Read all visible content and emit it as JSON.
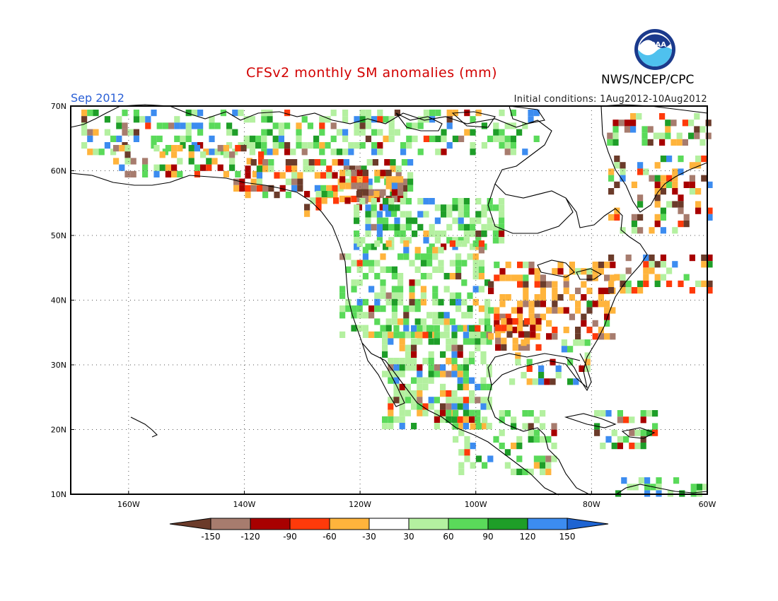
{
  "header": {
    "title": "CFSv2 monthly SM anomalies (mm)",
    "period": "Sep 2012",
    "initial_conditions": "Initial conditions: 1Aug2012-10Aug2012",
    "agency": "NWS/NCEP/CPC",
    "logo_text": "NOAA"
  },
  "map": {
    "lat_labels": [
      "70N",
      "60N",
      "50N",
      "40N",
      "30N",
      "20N",
      "10N"
    ],
    "lon_labels": [
      "160W",
      "140W",
      "120W",
      "100W",
      "80W",
      "60W"
    ],
    "lat_range": [
      10,
      70
    ],
    "lon_range": [
      -170,
      -60
    ],
    "gridlines": "dotted"
  },
  "colorbar": {
    "labels": [
      "-150",
      "-120",
      "-90",
      "-60",
      "-30",
      "30",
      "60",
      "90",
      "120",
      "150"
    ],
    "colors": [
      "#6b3b2a",
      "#a77c6e",
      "#a80000",
      "#ff3a0a",
      "#ffb43c",
      "#ffffff",
      "#b4f0a0",
      "#5ada5a",
      "#1e9e28",
      "#3c8cf0",
      "#1e64d2"
    ]
  },
  "colors": {
    "coast": "#000000",
    "title": "#d20000",
    "period": "#2a5fd6"
  }
}
